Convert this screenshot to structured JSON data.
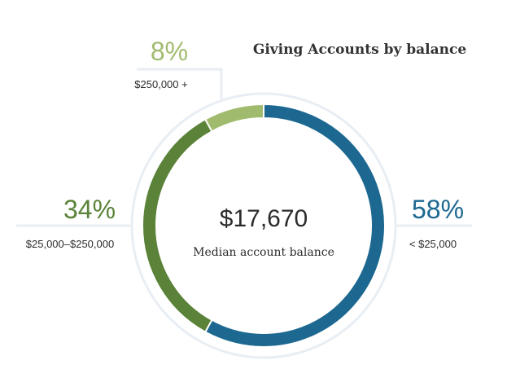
{
  "chart_data": {
    "type": "pie",
    "variant": "donut",
    "title": "Giving Accounts by balance",
    "center_value": "$17,670",
    "center_label": "Median account balance",
    "slices": [
      {
        "label": "< $25,000",
        "pct_text": "58%",
        "value": 58,
        "color": "#1c6891"
      },
      {
        "label": "$25,000–$250,000",
        "pct_text": "34%",
        "value": 34,
        "color": "#5a8238"
      },
      {
        "label": "$250,000 +",
        "pct_text": "8%",
        "value": 8,
        "color": "#a1bb6e"
      }
    ],
    "legend": "none"
  }
}
